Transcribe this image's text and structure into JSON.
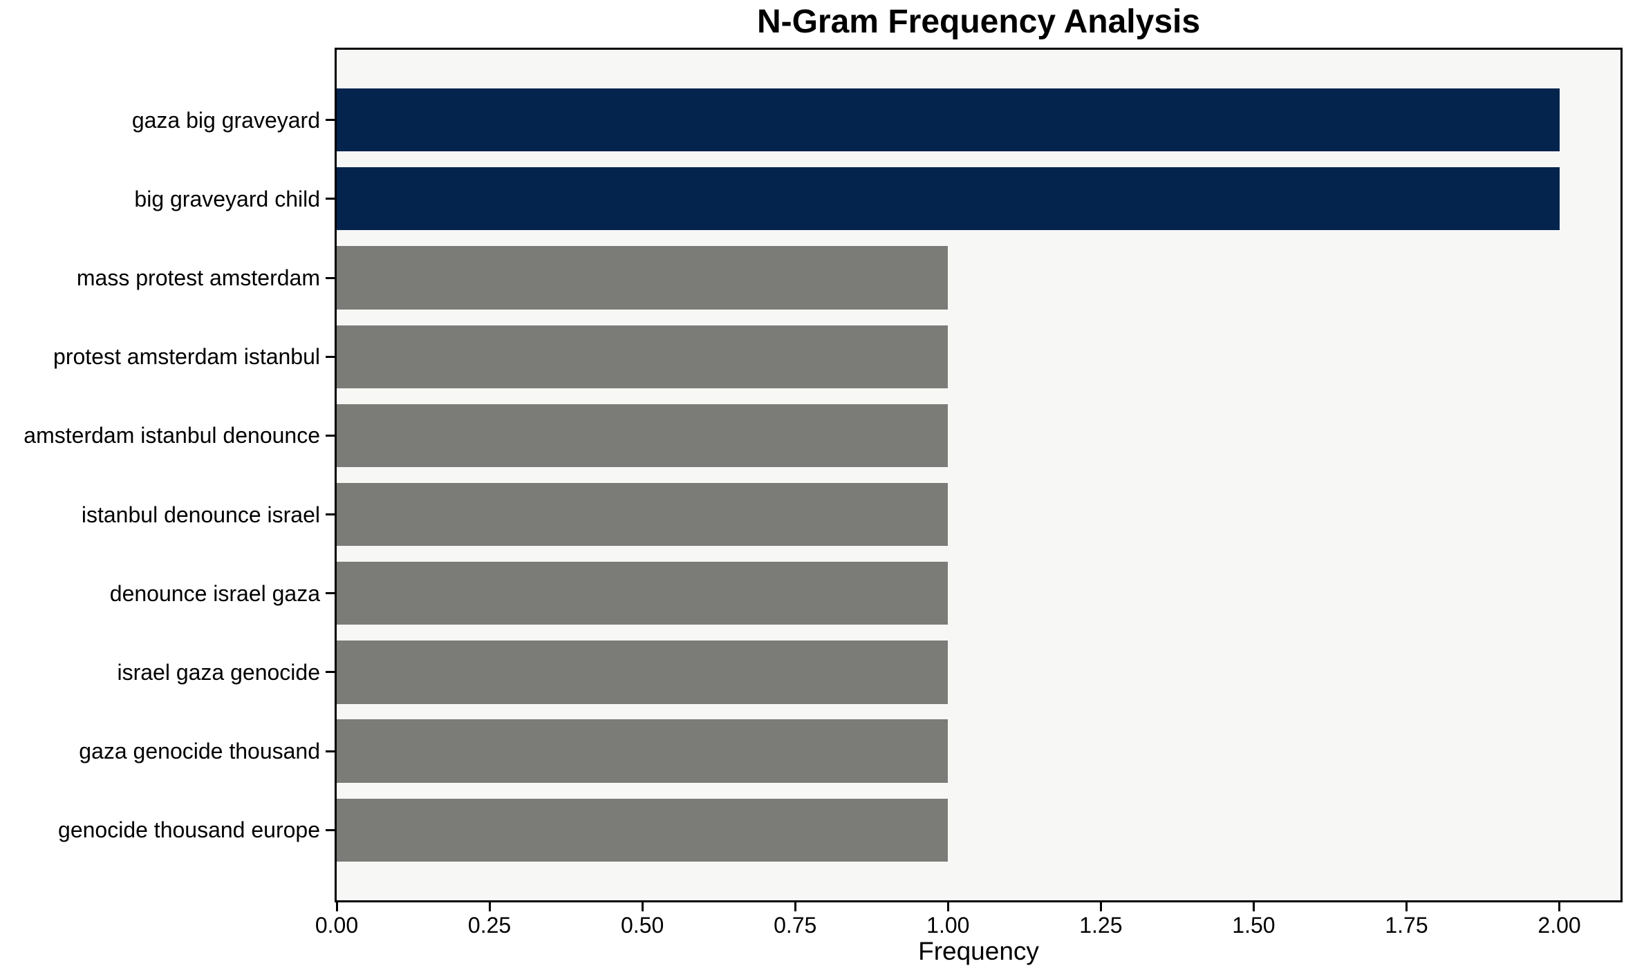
{
  "page": {
    "background": "#ffffff"
  },
  "chart_data": {
    "type": "bar",
    "orientation": "horizontal",
    "title": "N-Gram Frequency Analysis",
    "xlabel": "Frequency",
    "ylabel": "",
    "categories": [
      "gaza big graveyard",
      "big graveyard child",
      "mass protest amsterdam",
      "protest amsterdam istanbul",
      "amsterdam istanbul denounce",
      "istanbul denounce israel",
      "denounce israel gaza",
      "israel gaza genocide",
      "gaza genocide thousand",
      "genocide thousand europe"
    ],
    "values": [
      2,
      2,
      1,
      1,
      1,
      1,
      1,
      1,
      1,
      1
    ],
    "bar_colors": [
      "#04234d",
      "#04234d",
      "#7b7b78",
      "#7b7b78",
      "#7b7b78",
      "#7b7b78",
      "#7b7b78",
      "#7b7b78",
      "#7b7b78",
      "#7b7b78"
    ],
    "xlim": [
      0,
      2.1
    ],
    "xticks": [
      {
        "value": 0.0,
        "label": "0.00"
      },
      {
        "value": 0.25,
        "label": "0.25"
      },
      {
        "value": 0.5,
        "label": "0.50"
      },
      {
        "value": 0.75,
        "label": "0.75"
      },
      {
        "value": 1.0,
        "label": "1.00"
      },
      {
        "value": 1.25,
        "label": "1.25"
      },
      {
        "value": 1.5,
        "label": "1.50"
      },
      {
        "value": 1.75,
        "label": "1.75"
      },
      {
        "value": 2.0,
        "label": "2.00"
      }
    ],
    "grid": false,
    "legend": null,
    "colors": {
      "highlight_bar": "#04234d",
      "default_bar": "#7b7b78",
      "plot_background": "#f7f7f6",
      "frame": "#000000",
      "text": "#000000"
    }
  }
}
